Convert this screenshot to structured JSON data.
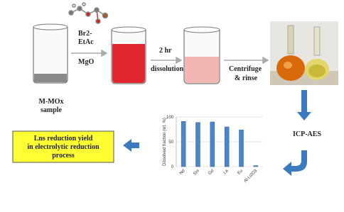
{
  "reagents": {
    "line1": "Br2-",
    "line2": "EtAc",
    "line3": "MgO"
  },
  "start": {
    "line1": "M-MOx",
    "line2": "sample"
  },
  "dissolution": {
    "line1": "2 hr",
    "line2": "dissolution"
  },
  "separation": {
    "line1": "Centrifuge",
    "line2": "& rinse"
  },
  "analysis": "ICP-AES",
  "result": {
    "line1": "Lns reduction yield",
    "line2": "in electrolytic reduction",
    "line3": "process"
  },
  "chart_data": {
    "type": "bar",
    "ylabel": "Dissolved fraction (wt. %)",
    "categories": [
      "Nd",
      "Sm",
      "Gd",
      "La",
      "Eu",
      "Al-Li2O3"
    ],
    "values": [
      91,
      89,
      90,
      80,
      74,
      2
    ],
    "color": "#4a86c8",
    "ylim": [
      0,
      100
    ],
    "yticks": [
      0,
      50,
      100
    ],
    "grid": true
  }
}
